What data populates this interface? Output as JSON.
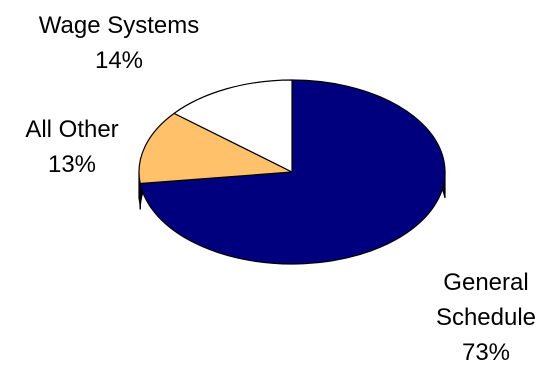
{
  "chart_data": {
    "type": "pie",
    "style": "3d",
    "slices": [
      {
        "label": "General Schedule",
        "label_lines": [
          "General",
          "Schedule"
        ],
        "value": 73,
        "value_label": "73%",
        "color": "#00007f",
        "side_color": "#00003c"
      },
      {
        "label": "All Other",
        "label_lines": [
          "All Other"
        ],
        "value": 13,
        "value_label": "13%",
        "color": "#ffc26b",
        "side_color": "#b98a40"
      },
      {
        "label": "Wage Systems",
        "label_lines": [
          "Wage Systems"
        ],
        "value": 14,
        "value_label": "14%",
        "color": "#ffffff",
        "side_color": "#d8d8d8"
      }
    ],
    "title": "",
    "legend": "none",
    "outline_color": "#000000"
  }
}
